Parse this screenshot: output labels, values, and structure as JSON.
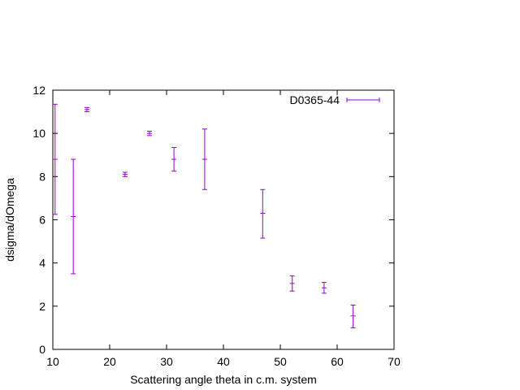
{
  "chart_data": {
    "type": "scatter",
    "title": "",
    "xlabel": "Scattering angle theta in c.m. system",
    "ylabel": "dsigma/dOmega",
    "xlim": [
      10,
      70
    ],
    "ylim": [
      0,
      12
    ],
    "xticks": [
      10,
      20,
      30,
      40,
      50,
      60,
      70
    ],
    "yticks": [
      0,
      2,
      4,
      6,
      8,
      10,
      12
    ],
    "grid": false,
    "legend_position": "top-right",
    "series": [
      {
        "name": "D0365-44",
        "color": "#9400d3",
        "error_bars": "y",
        "points": [
          {
            "x": 10.4,
            "y": 8.8,
            "ylow": 6.25,
            "yhigh": 11.35
          },
          {
            "x": 13.6,
            "y": 6.15,
            "ylow": 3.5,
            "yhigh": 8.8
          },
          {
            "x": 16.0,
            "y": 11.1,
            "ylow": 11.0,
            "yhigh": 11.2
          },
          {
            "x": 22.7,
            "y": 8.1,
            "ylow": 8.0,
            "yhigh": 8.2
          },
          {
            "x": 27.0,
            "y": 10.0,
            "ylow": 9.9,
            "yhigh": 10.1
          },
          {
            "x": 31.3,
            "y": 8.8,
            "ylow": 8.25,
            "yhigh": 9.35
          },
          {
            "x": 36.7,
            "y": 8.8,
            "ylow": 7.4,
            "yhigh": 10.2
          },
          {
            "x": 46.9,
            "y": 6.3,
            "ylow": 5.15,
            "yhigh": 7.4
          },
          {
            "x": 52.1,
            "y": 3.05,
            "ylow": 2.7,
            "yhigh": 3.4
          },
          {
            "x": 57.7,
            "y": 2.85,
            "ylow": 2.6,
            "yhigh": 3.1
          },
          {
            "x": 62.8,
            "y": 1.55,
            "ylow": 1.0,
            "yhigh": 2.05
          }
        ]
      }
    ]
  }
}
